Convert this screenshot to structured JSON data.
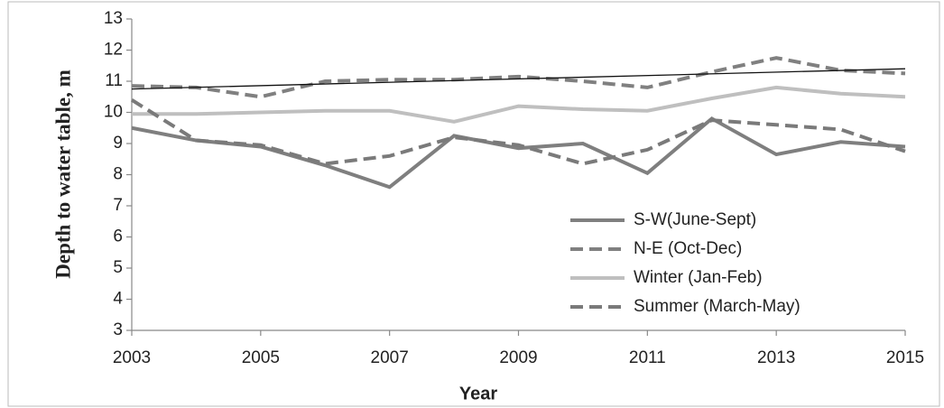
{
  "chart_data": {
    "type": "line",
    "x_label": "Year",
    "y_label": "Depth to water table, m",
    "x": [
      2003,
      2004,
      2005,
      2006,
      2007,
      2008,
      2009,
      2010,
      2011,
      2012,
      2013,
      2014,
      2015
    ],
    "series": [
      {
        "name": "S-W(June-Sept)",
        "color": "#7f7f7f",
        "dash": false,
        "values": [
          9.5,
          9.1,
          8.9,
          8.3,
          7.6,
          9.25,
          8.85,
          9.0,
          8.05,
          9.8,
          8.65,
          9.05,
          8.9
        ]
      },
      {
        "name": "N-E (Oct-Dec)",
        "color": "#808080",
        "dash": true,
        "values": [
          10.85,
          10.8,
          10.5,
          11.0,
          11.05,
          11.05,
          11.15,
          11.0,
          10.8,
          11.3,
          11.75,
          11.35,
          11.25
        ]
      },
      {
        "name": "Winter (Jan-Feb)",
        "color": "#bfbfbf",
        "dash": false,
        "values": [
          9.95,
          9.95,
          10.0,
          10.05,
          10.05,
          9.7,
          10.2,
          10.1,
          10.05,
          10.45,
          10.8,
          10.6,
          10.5
        ]
      },
      {
        "name": "Summer (March-May)",
        "color": "#7a7a7a",
        "dash": true,
        "values": [
          10.4,
          9.1,
          8.95,
          8.35,
          8.6,
          9.2,
          8.95,
          8.35,
          8.8,
          9.75,
          9.6,
          9.45,
          8.75
        ]
      }
    ],
    "trendline": {
      "x": [
        2003,
        2015
      ],
      "values": [
        10.75,
        11.4
      ],
      "color": "#111111"
    },
    "xlim": [
      2003,
      2015
    ],
    "xticks": [
      2003,
      2005,
      2007,
      2009,
      2011,
      2013,
      2015
    ],
    "ylim": [
      3,
      13
    ],
    "yticks": [
      3,
      4,
      5,
      6,
      7,
      8,
      9,
      10,
      11,
      12,
      13
    ],
    "grid": false
  }
}
